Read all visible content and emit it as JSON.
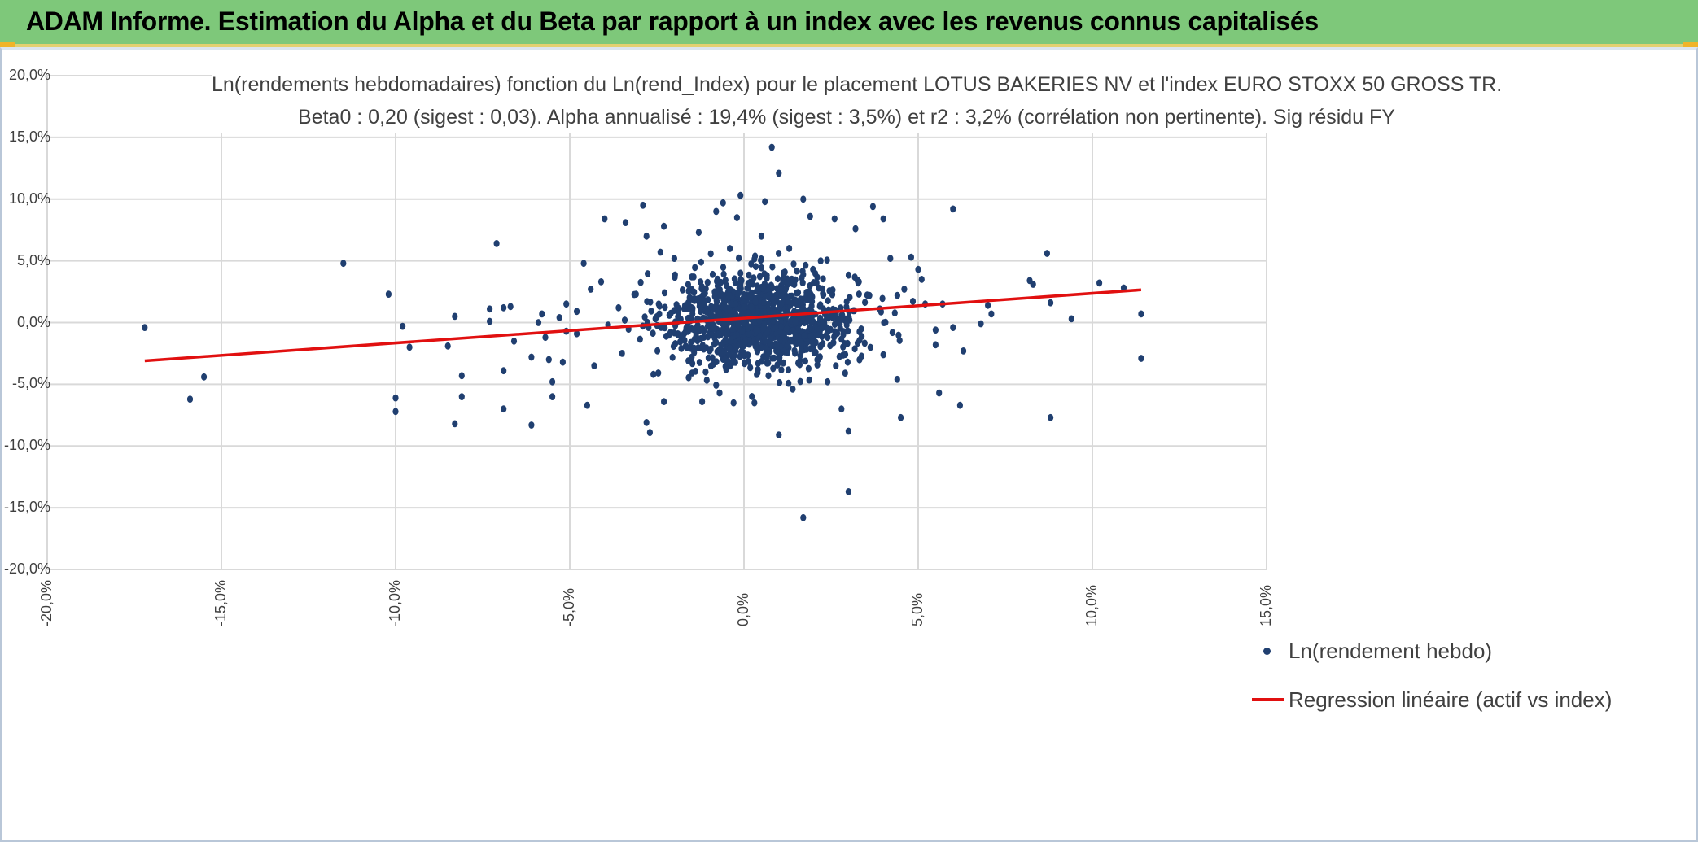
{
  "banner": {
    "title": "ADAM Informe. Estimation du Alpha et du Beta par rapport à un index avec les revenus connus capitalisés"
  },
  "colors": {
    "banner_bg": "#7ec87a",
    "points": "#203f70",
    "regression": "#e11010",
    "grid": "#d9d9d9",
    "text": "#404040"
  },
  "chart_data": {
    "type": "scatter",
    "title": "Ln(rendements hebdomadaires) fonction du Ln(rend_Index) pour le placement LOTUS BAKERIES NV et l'index EURO STOXX 50 GROSS TR.",
    "subtitle": "Beta0 : 0,20 (sigest : 0,03). Alpha annualisé : 19,4% (sigest : 3,5%) et r2 : 3,2% (corrélation non pertinente). Sig résidu FY",
    "xlabel": "",
    "ylabel": "",
    "xlim": [
      -20,
      15
    ],
    "ylim": [
      -20,
      20
    ],
    "grid": true,
    "x_ticks": [
      -20,
      -15,
      -10,
      -5,
      0,
      5,
      10,
      15
    ],
    "y_ticks": [
      -20,
      -15,
      -10,
      -5,
      0,
      5,
      10,
      15,
      20
    ],
    "x_tick_labels": [
      "-20,0%",
      "-15,0%",
      "-10,0%",
      "-5,0%",
      "0,0%",
      "5,0%",
      "10,0%",
      "15,0%"
    ],
    "y_tick_labels": [
      "-20,0%",
      "-15,0%",
      "-10,0%",
      "-5,0%",
      "0,0%",
      "5,0%",
      "10,0%",
      "15,0%",
      "20,0%"
    ],
    "legend_position": "bottom-right",
    "series": [
      {
        "name": "Ln(rendement hebdo)",
        "kind": "scatter",
        "points": [
          [
            -17.2,
            -0.4
          ],
          [
            -15.9,
            -6.2
          ],
          [
            -15.5,
            -4.4
          ],
          [
            -11.5,
            4.8
          ],
          [
            -10.2,
            2.3
          ],
          [
            -10.0,
            -6.1
          ],
          [
            -10.0,
            -7.2
          ],
          [
            -9.8,
            -0.3
          ],
          [
            -9.6,
            -2.0
          ],
          [
            -8.5,
            -1.9
          ],
          [
            -8.3,
            0.5
          ],
          [
            -8.3,
            -8.2
          ],
          [
            -8.1,
            -4.3
          ],
          [
            -8.1,
            -6.0
          ],
          [
            -7.3,
            1.1
          ],
          [
            -7.3,
            0.1
          ],
          [
            -7.1,
            6.4
          ],
          [
            -6.9,
            1.2
          ],
          [
            -6.9,
            -3.9
          ],
          [
            -6.9,
            -7.0
          ],
          [
            -6.7,
            1.3
          ],
          [
            -6.6,
            -1.5
          ],
          [
            -6.1,
            -2.8
          ],
          [
            -6.1,
            -8.3
          ],
          [
            -5.9,
            0.0
          ],
          [
            -5.8,
            0.7
          ],
          [
            -5.7,
            -1.2
          ],
          [
            -5.6,
            -3.0
          ],
          [
            -5.5,
            -4.8
          ],
          [
            -5.5,
            -6.0
          ],
          [
            -5.3,
            0.4
          ],
          [
            -5.2,
            -3.2
          ],
          [
            -5.1,
            1.5
          ],
          [
            -5.1,
            -0.7
          ],
          [
            -4.8,
            -0.9
          ],
          [
            -4.8,
            0.9
          ],
          [
            -4.6,
            4.8
          ],
          [
            -4.5,
            -6.7
          ],
          [
            -4.4,
            2.7
          ],
          [
            -4.3,
            -3.5
          ],
          [
            -4.1,
            3.3
          ],
          [
            -4.0,
            8.4
          ],
          [
            -3.9,
            -0.2
          ],
          [
            -3.6,
            1.2
          ],
          [
            -3.5,
            -2.5
          ],
          [
            -3.4,
            8.1
          ],
          [
            -3.1,
            2.3
          ],
          [
            -2.9,
            9.5
          ],
          [
            -2.8,
            7.0
          ],
          [
            -2.8,
            -8.1
          ],
          [
            -2.7,
            -8.9
          ],
          [
            -2.6,
            -4.2
          ],
          [
            -2.4,
            5.7
          ],
          [
            -2.3,
            7.8
          ],
          [
            -2.3,
            -6.4
          ],
          [
            -2.0,
            5.2
          ],
          [
            -1.8,
            -2.1
          ],
          [
            -1.6,
            1.6
          ],
          [
            -1.5,
            -2.8
          ],
          [
            -1.3,
            7.3
          ],
          [
            -1.2,
            -6.4
          ],
          [
            -1.1,
            -4.0
          ],
          [
            -0.9,
            3.9
          ],
          [
            -0.8,
            9.0
          ],
          [
            -0.7,
            -5.7
          ],
          [
            -0.6,
            9.7
          ],
          [
            -0.5,
            3.0
          ],
          [
            -0.3,
            -6.5
          ],
          [
            -0.2,
            8.5
          ],
          [
            -0.1,
            4.0
          ],
          [
            -0.1,
            10.3
          ],
          [
            0.2,
            0.5
          ],
          [
            0.3,
            -6.5
          ],
          [
            0.4,
            -3.8
          ],
          [
            0.5,
            7.0
          ],
          [
            0.6,
            9.8
          ],
          [
            0.7,
            -4.3
          ],
          [
            0.8,
            14.2
          ],
          [
            0.9,
            1.7
          ],
          [
            1.0,
            12.1
          ],
          [
            1.0,
            -9.1
          ],
          [
            1.3,
            6.0
          ],
          [
            1.4,
            -5.4
          ],
          [
            1.6,
            -3.4
          ],
          [
            1.7,
            10.0
          ],
          [
            1.7,
            -15.8
          ],
          [
            1.9,
            8.6
          ],
          [
            2.0,
            -1.8
          ],
          [
            2.2,
            5.0
          ],
          [
            2.4,
            -4.8
          ],
          [
            2.6,
            8.4
          ],
          [
            2.8,
            -7.0
          ],
          [
            3.0,
            -8.8
          ],
          [
            3.0,
            -13.7
          ],
          [
            3.2,
            7.6
          ],
          [
            3.3,
            3.3
          ],
          [
            3.6,
            2.2
          ],
          [
            3.7,
            9.4
          ],
          [
            3.9,
            1.1
          ],
          [
            4.0,
            8.4
          ],
          [
            4.0,
            -2.6
          ],
          [
            4.2,
            5.2
          ],
          [
            4.4,
            -4.6
          ],
          [
            4.5,
            -7.7
          ],
          [
            4.6,
            2.7
          ],
          [
            4.8,
            5.3
          ],
          [
            5.0,
            4.3
          ],
          [
            5.1,
            3.5
          ],
          [
            5.2,
            1.5
          ],
          [
            5.5,
            -0.6
          ],
          [
            5.5,
            -1.8
          ],
          [
            5.6,
            -5.7
          ],
          [
            5.7,
            1.5
          ],
          [
            6.0,
            -0.4
          ],
          [
            6.0,
            9.2
          ],
          [
            6.2,
            -6.7
          ],
          [
            6.3,
            -2.3
          ],
          [
            6.8,
            -0.1
          ],
          [
            7.0,
            1.4
          ],
          [
            7.1,
            0.7
          ],
          [
            8.2,
            3.4
          ],
          [
            8.3,
            3.1
          ],
          [
            8.7,
            5.6
          ],
          [
            8.8,
            -7.7
          ],
          [
            8.8,
            1.6
          ],
          [
            9.4,
            0.3
          ],
          [
            10.2,
            3.2
          ],
          [
            10.9,
            2.8
          ],
          [
            11.4,
            0.7
          ],
          [
            11.4,
            -2.9
          ]
        ],
        "note": "Additional dense cluster of weekly observations centred near (0.5%, 0.5%) spanning roughly x -4%..+5%, y -5%..+6%"
      },
      {
        "name": "Regression linéaire (actif vs index)",
        "kind": "line",
        "x": [
          -17.2,
          11.4
        ],
        "y": [
          -3.1,
          2.65
        ]
      }
    ]
  }
}
